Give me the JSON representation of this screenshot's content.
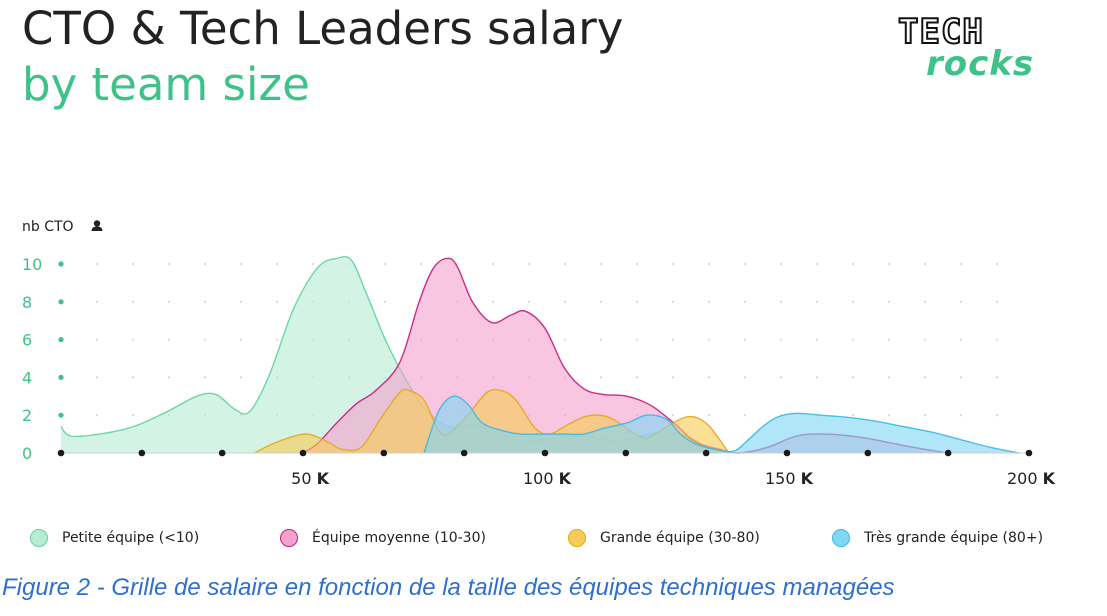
{
  "title": "CTO & Tech Leaders salary",
  "subtitle": "by team size",
  "logo": {
    "line1": "TECH",
    "line2": "rocks"
  },
  "caption": "Figure 2 - Grille de salaire en fonction de la taille des équipes techniques managées",
  "colors": {
    "accent": "#3ec28a",
    "caption": "#2e6fd0",
    "petite_fill": "#b8ebd4",
    "petite_stroke": "#5ed3a0",
    "moyenne_fill": "#f4a3cf",
    "moyenne_stroke": "#c51a7e",
    "grande_fill": "#f7cc55",
    "grande_stroke": "#e3a71c",
    "tres_fill": "#7fd7f4",
    "tres_stroke": "#3ab8e6"
  },
  "chart_data": {
    "type": "area",
    "ylabel": "nb CTO",
    "xlim": [
      0,
      200
    ],
    "ylim": [
      0,
      10
    ],
    "yticks": [
      {
        "value": 0,
        "label": "0"
      },
      {
        "value": 2,
        "label": "2"
      },
      {
        "value": 4,
        "label": "4"
      },
      {
        "value": 6,
        "label": "6"
      },
      {
        "value": 8,
        "label": "8"
      },
      {
        "value": 10,
        "label": "10"
      }
    ],
    "xticks": [
      {
        "value": 50,
        "num": "50",
        "unit": "K"
      },
      {
        "value": 100,
        "num": "100",
        "unit": "K"
      },
      {
        "value": 150,
        "num": "150",
        "unit": "K"
      },
      {
        "value": 200,
        "num": "200",
        "unit": "K"
      }
    ],
    "x_axis_dots": [
      0,
      16.7,
      33.3,
      50,
      66.7,
      83.3,
      100,
      116.7,
      133.3,
      150,
      166.7,
      183.3,
      200
    ],
    "grid": "dotted",
    "legend_position": "bottom",
    "series": [
      {
        "name": "Petite équipe (<10)",
        "key": "petite",
        "x": [
          0,
          2,
          8,
          15,
          22,
          28,
          32,
          36,
          39,
          43,
          48,
          53,
          57,
          60,
          63,
          67,
          71,
          75,
          80,
          85,
          90,
          95,
          100,
          105,
          110,
          115,
          120,
          125,
          130,
          135
        ],
        "y": [
          1.4,
          0.9,
          1.0,
          1.4,
          2.2,
          3.0,
          3.1,
          2.3,
          2.2,
          4.1,
          7.6,
          9.8,
          10.3,
          10.2,
          8.5,
          6.0,
          4.0,
          2.4,
          1.4,
          1.5,
          1.1,
          0.6,
          0.7,
          0.9,
          0.8,
          0.6,
          0.9,
          1.1,
          0.8,
          0.0
        ]
      },
      {
        "name": "Équipe moyenne (10-30)",
        "key": "moyenne",
        "x": [
          50,
          53,
          57,
          61,
          65,
          70,
          74,
          77,
          80,
          82,
          85,
          89,
          93,
          96,
          100,
          104,
          108,
          112,
          117,
          122,
          127,
          131,
          136,
          140,
          146,
          152,
          158,
          166,
          174,
          183
        ],
        "y": [
          0.0,
          0.5,
          1.6,
          2.6,
          3.3,
          4.8,
          8.0,
          9.8,
          10.3,
          9.8,
          8.0,
          6.9,
          7.3,
          7.5,
          6.6,
          4.5,
          3.4,
          3.1,
          3.0,
          2.5,
          1.5,
          0.6,
          0.2,
          0.0,
          0.3,
          0.9,
          1.0,
          0.8,
          0.4,
          0.0
        ]
      },
      {
        "name": "Grande équipe (30-80)",
        "key": "grande",
        "x": [
          40,
          43,
          47,
          51,
          55,
          58,
          62,
          66,
          70,
          72,
          75,
          78,
          80,
          84,
          88,
          91,
          94,
          98,
          101,
          104,
          108,
          111,
          114,
          118,
          121,
          124,
          128,
          131,
          134,
          138
        ],
        "y": [
          0.0,
          0.4,
          0.8,
          1.0,
          0.6,
          0.2,
          0.3,
          1.8,
          3.2,
          3.3,
          2.8,
          1.2,
          1.0,
          2.0,
          3.2,
          3.3,
          2.8,
          1.3,
          1.0,
          1.4,
          1.9,
          2.0,
          1.8,
          1.1,
          0.8,
          1.2,
          1.8,
          1.9,
          1.4,
          0.0
        ]
      },
      {
        "name": "Très grande équipe (80+)",
        "key": "tres",
        "x": [
          75,
          78,
          81,
          84,
          87,
          91,
          95,
          100,
          104,
          108,
          112,
          117,
          121,
          125,
          128,
          131,
          135,
          139,
          142,
          145,
          148,
          152,
          157,
          162,
          168,
          174,
          180,
          186,
          192,
          198
        ],
        "y": [
          0.0,
          2.2,
          3.0,
          2.6,
          1.6,
          1.2,
          1.0,
          1.0,
          1.0,
          1.0,
          1.3,
          1.6,
          2.0,
          1.8,
          1.0,
          0.5,
          0.2,
          0.1,
          0.7,
          1.4,
          1.9,
          2.1,
          2.0,
          1.9,
          1.7,
          1.4,
          1.1,
          0.7,
          0.3,
          0.0
        ]
      }
    ]
  }
}
